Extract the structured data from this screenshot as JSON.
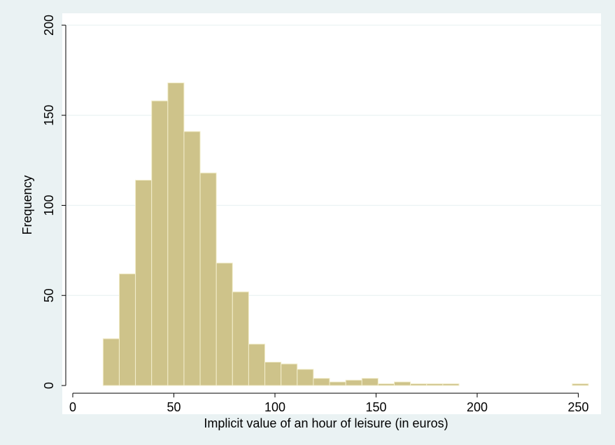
{
  "chart_data": {
    "type": "bar",
    "title": "",
    "xlabel": "Implicit value of an hour of leisure (in euros)",
    "ylabel": "Frequency",
    "xlim": [
      0,
      260
    ],
    "ylim": [
      0,
      200
    ],
    "xticks": [
      0,
      50,
      100,
      150,
      200,
      250
    ],
    "yticks": [
      0,
      50,
      100,
      150,
      200
    ],
    "grid": true,
    "bar_color": "#cec38a",
    "bar_edge_color": "#f3eecd",
    "bin_width": 8,
    "bins": [
      {
        "x0": 15,
        "value": 26
      },
      {
        "x0": 23,
        "value": 62
      },
      {
        "x0": 31,
        "value": 114
      },
      {
        "x0": 39,
        "value": 158
      },
      {
        "x0": 47,
        "value": 168
      },
      {
        "x0": 55,
        "value": 141
      },
      {
        "x0": 63,
        "value": 118
      },
      {
        "x0": 71,
        "value": 68
      },
      {
        "x0": 79,
        "value": 52
      },
      {
        "x0": 87,
        "value": 23
      },
      {
        "x0": 95,
        "value": 13
      },
      {
        "x0": 103,
        "value": 12
      },
      {
        "x0": 111,
        "value": 9
      },
      {
        "x0": 119,
        "value": 4
      },
      {
        "x0": 127,
        "value": 2
      },
      {
        "x0": 135,
        "value": 3
      },
      {
        "x0": 143,
        "value": 4
      },
      {
        "x0": 151,
        "value": 1
      },
      {
        "x0": 159,
        "value": 2
      },
      {
        "x0": 167,
        "value": 1
      },
      {
        "x0": 175,
        "value": 1
      },
      {
        "x0": 183,
        "value": 1
      },
      {
        "x0": 247,
        "value": 1
      }
    ]
  }
}
